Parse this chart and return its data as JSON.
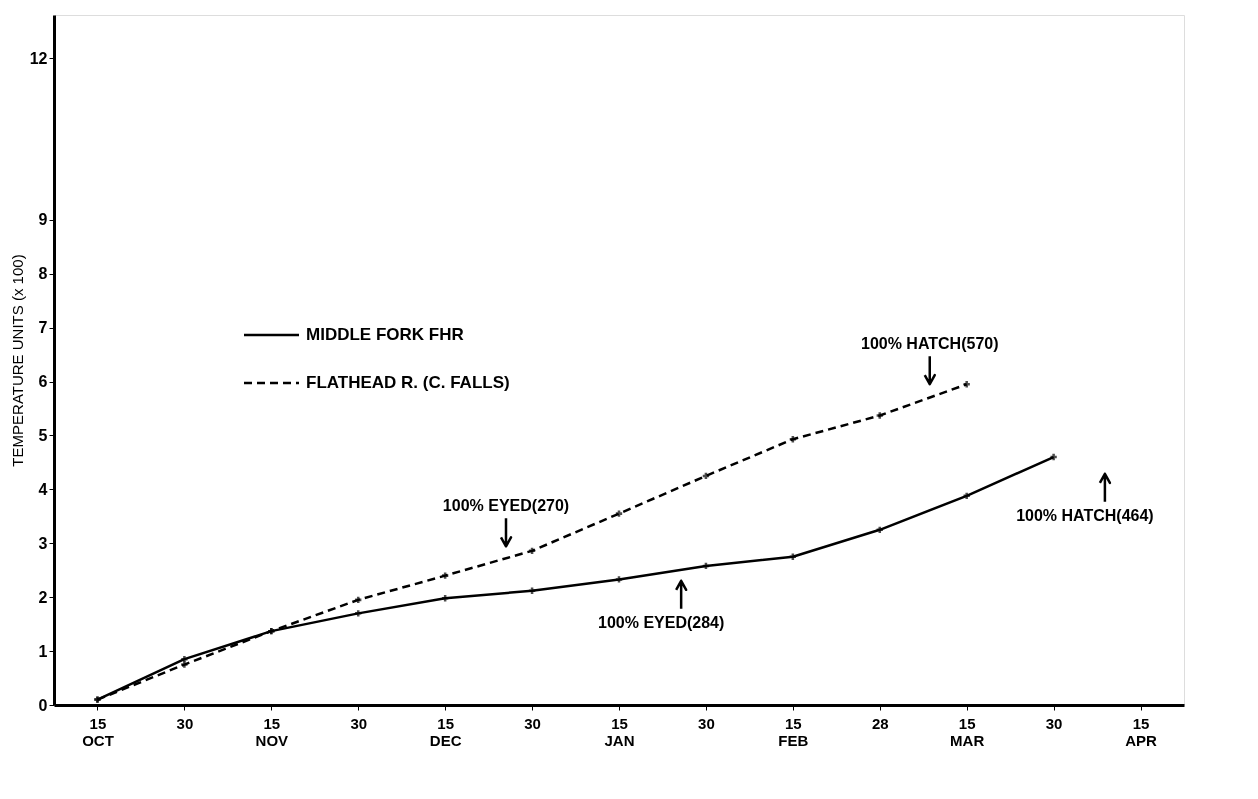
{
  "chart_data": {
    "type": "line",
    "ylabel": "TEMPERATURE UNITS (x 100)",
    "categories": [
      "15\nOCT",
      "30",
      "15\nNOV",
      "30",
      "15\nDEC",
      "30",
      "15\nJAN",
      "30",
      "15\nFEB",
      "28",
      "15\nMAR",
      "30",
      "15\nAPR"
    ],
    "series": [
      {
        "name": "MIDDLE FORK FHR",
        "color": "#000000",
        "line_style": "solid",
        "values": [
          0.1,
          0.85,
          1.37,
          1.7,
          1.98,
          2.12,
          2.33,
          2.58,
          2.75,
          3.25,
          3.88,
          4.6,
          null
        ]
      },
      {
        "name": "FLATHEAD R. (C. FALLS)",
        "color": "#000000",
        "line_style": "dashed",
        "values": [
          0.1,
          0.75,
          1.37,
          1.95,
          2.4,
          2.86,
          3.55,
          4.25,
          4.93,
          5.37,
          5.95,
          null,
          null
        ]
      }
    ],
    "ylim": [
      0,
      12.8
    ],
    "yticks": [
      0,
      1,
      2,
      3,
      4,
      5,
      6,
      7,
      8,
      9,
      12
    ],
    "annotations": [
      "100% EYED(270)",
      "100% EYED(284)",
      "100% HATCH(570)",
      "100% HATCH(464)"
    ],
    "legend": "left",
    "marker": "cross",
    "grid": false
  }
}
